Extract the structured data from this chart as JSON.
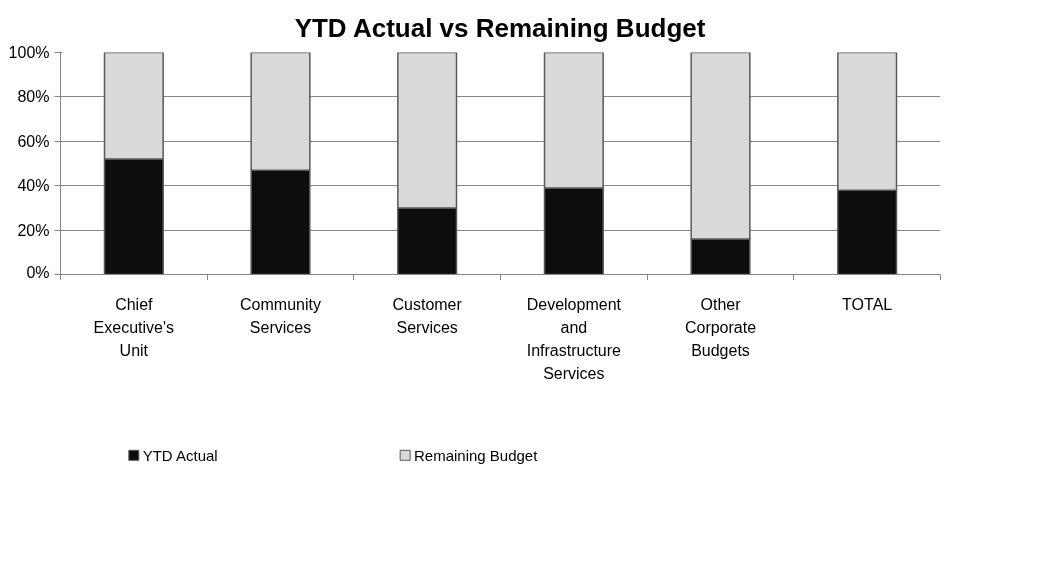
{
  "chart_data": {
    "type": "bar",
    "title": "YTD Actual vs Remaining Budget",
    "categories": [
      "Chief Executive's Unit",
      "Community Services",
      "Customer Services",
      "Development and Infrastructure Services",
      "Other Corporate Budgets",
      "TOTAL"
    ],
    "series": [
      {
        "name": "YTD Actual",
        "color": "#0d0d0d",
        "values": [
          52,
          47,
          30,
          39,
          16,
          38
        ]
      },
      {
        "name": "Remaining Budget",
        "color": "#d9d9d9",
        "values": [
          48,
          53,
          70,
          61,
          84,
          62
        ]
      }
    ],
    "stacked": true,
    "ylim": [
      0,
      100
    ],
    "yticks": [
      {
        "value": 0,
        "label": "0%"
      },
      {
        "value": 20,
        "label": "20%"
      },
      {
        "value": 40,
        "label": "40%"
      },
      {
        "value": 60,
        "label": "60%"
      },
      {
        "value": 80,
        "label": "80%"
      },
      {
        "value": 100,
        "label": "100%"
      }
    ],
    "grid": "y",
    "legend": "bottom"
  }
}
